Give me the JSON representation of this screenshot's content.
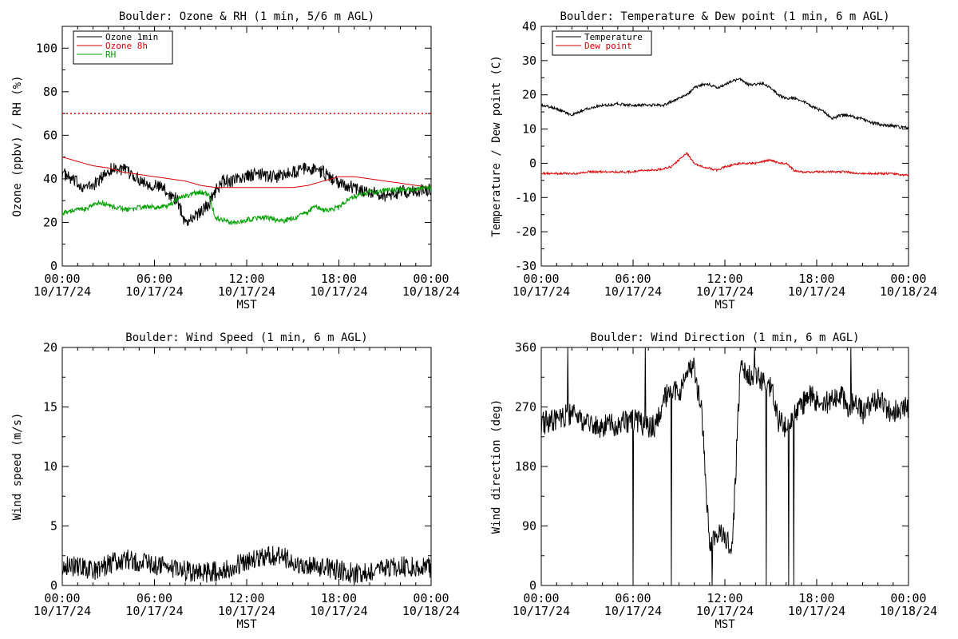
{
  "chart_data": [
    {
      "type": "line",
      "title": "Boulder: Ozone & RH (1 min, 5/6 m AGL)",
      "xlabel": "MST",
      "ylabel": "Ozone (ppbv) / RH (%)",
      "xlim": [
        0,
        24
      ],
      "ylim": [
        0,
        110
      ],
      "x_ticks": [
        {
          "time": "00:00",
          "date": "10/17/24"
        },
        {
          "time": "06:00",
          "date": "10/17/24"
        },
        {
          "time": "12:00",
          "date": "10/17/24"
        },
        {
          "time": "18:00",
          "date": "10/17/24"
        },
        {
          "time": "00:00",
          "date": "10/18/24"
        }
      ],
      "y_ticks": [
        0,
        20,
        40,
        60,
        80,
        100
      ],
      "legend_position": "top-left",
      "reference_line": {
        "value": 70,
        "color": "#e00000",
        "style": "dotted"
      },
      "series": [
        {
          "name": "Ozone 1min",
          "color": "#000000",
          "x": [
            0,
            0.5,
            1,
            1.5,
            2,
            2.5,
            3,
            3.5,
            4,
            4.5,
            5,
            5.5,
            6,
            6.5,
            7,
            7.5,
            8,
            8.5,
            9,
            9.5,
            10,
            10.5,
            11,
            11.5,
            12,
            12.5,
            13,
            13.5,
            14,
            14.5,
            15,
            15.5,
            16,
            16.5,
            17,
            17.5,
            18,
            18.5,
            19,
            19.5,
            20,
            20.5,
            21,
            21.5,
            22,
            22.5,
            23,
            23.5,
            24
          ],
          "values": [
            43,
            40,
            38,
            36,
            37,
            40,
            44,
            45,
            44,
            42,
            40,
            38,
            37,
            36,
            33,
            30,
            20,
            22,
            25,
            28,
            35,
            39,
            39,
            40,
            41,
            42,
            42,
            41,
            41,
            42,
            43,
            44,
            45,
            44,
            43,
            40,
            38,
            37,
            36,
            35,
            34,
            33,
            32,
            33,
            34,
            34,
            34,
            35,
            35
          ],
          "noise": 3
        },
        {
          "name": "Ozone 8h",
          "color": "#e00000",
          "x": [
            0,
            1,
            2,
            3,
            4,
            5,
            6,
            7,
            8,
            9,
            10,
            11,
            12,
            13,
            14,
            15,
            16,
            17,
            18,
            19,
            20,
            21,
            22,
            23,
            24
          ],
          "values": [
            50,
            48,
            46,
            45,
            43,
            42,
            41,
            40,
            39,
            37,
            36,
            36,
            36,
            36,
            36,
            36,
            37,
            39,
            41,
            41,
            40,
            39,
            38,
            37,
            36
          ],
          "noise": 0
        },
        {
          "name": "RH",
          "color": "#00a000",
          "x": [
            0,
            0.5,
            1,
            1.5,
            2,
            2.5,
            3,
            3.5,
            4,
            4.5,
            5,
            5.5,
            6,
            6.5,
            7,
            7.5,
            8,
            8.5,
            9,
            9.5,
            10,
            10.5,
            11,
            11.5,
            12,
            12.5,
            13,
            13.5,
            14,
            14.5,
            15,
            15.5,
            16,
            16.5,
            17,
            17.5,
            18,
            18.5,
            19,
            19.5,
            20,
            20.5,
            21,
            21.5,
            22,
            22.5,
            23,
            23.5,
            24
          ],
          "values": [
            24,
            25,
            26,
            26,
            28,
            29,
            28,
            27,
            26,
            26,
            27,
            27,
            27,
            27,
            28,
            31,
            32,
            33,
            34,
            33,
            22,
            21,
            20,
            20,
            21,
            22,
            22,
            22,
            21,
            21,
            22,
            23,
            25,
            27,
            26,
            26,
            27,
            30,
            32,
            33,
            34,
            34,
            35,
            35,
            35,
            35,
            35,
            36,
            36
          ],
          "noise": 1.2
        }
      ]
    },
    {
      "type": "line",
      "title": "Boulder: Temperature & Dew point (1 min, 6 m AGL)",
      "xlabel": "MST",
      "ylabel": "Temperature / Dew point (C)",
      "xlim": [
        0,
        24
      ],
      "ylim": [
        -30,
        40
      ],
      "x_ticks": [
        {
          "time": "00:00",
          "date": "10/17/24"
        },
        {
          "time": "06:00",
          "date": "10/17/24"
        },
        {
          "time": "12:00",
          "date": "10/17/24"
        },
        {
          "time": "18:00",
          "date": "10/17/24"
        },
        {
          "time": "00:00",
          "date": "10/18/24"
        }
      ],
      "y_ticks": [
        -30,
        -20,
        -10,
        0,
        10,
        20,
        30,
        40
      ],
      "legend_position": "top-left",
      "series": [
        {
          "name": "Temperature",
          "color": "#000000",
          "x": [
            0,
            0.5,
            1,
            1.5,
            2,
            2.5,
            3,
            3.5,
            4,
            4.5,
            5,
            5.5,
            6,
            6.5,
            7,
            7.5,
            8,
            8.5,
            9,
            9.5,
            10,
            10.5,
            11,
            11.5,
            12,
            12.5,
            13,
            13.5,
            14,
            14.5,
            15,
            15.5,
            16,
            16.5,
            17,
            17.5,
            18,
            18.5,
            19,
            19.5,
            20,
            20.5,
            21,
            21.5,
            22,
            22.5,
            23,
            23.5,
            24
          ],
          "values": [
            17,
            16.5,
            16,
            15,
            14,
            15,
            16,
            16.5,
            17,
            17,
            17.5,
            17,
            17,
            17,
            17,
            17,
            17,
            18,
            19,
            20,
            22,
            23,
            23,
            22,
            23,
            24,
            24.5,
            23,
            23,
            23.5,
            22,
            20,
            19,
            19,
            18.5,
            17,
            16,
            15,
            13,
            14,
            14,
            13.5,
            13,
            12,
            11.5,
            11,
            11,
            10.5,
            10.5
          ],
          "noise": 0.4
        },
        {
          "name": "Dew point",
          "color": "#e00000",
          "x": [
            0,
            0.5,
            1,
            1.5,
            2,
            2.5,
            3,
            3.5,
            4,
            4.5,
            5,
            5.5,
            6,
            6.5,
            7,
            7.5,
            8,
            8.5,
            9,
            9.5,
            10,
            10.5,
            11,
            11.5,
            12,
            12.5,
            13,
            13.5,
            14,
            14.5,
            15,
            15.5,
            16,
            16.5,
            17,
            17.5,
            18,
            18.5,
            19,
            19.5,
            20,
            20.5,
            21,
            21.5,
            22,
            22.5,
            23,
            23.5,
            24
          ],
          "values": [
            -3,
            -3,
            -3,
            -3,
            -3,
            -3,
            -2.5,
            -2.5,
            -2.5,
            -2.5,
            -2.5,
            -2.5,
            -2.5,
            -2,
            -2,
            -2,
            -1.5,
            -1,
            1,
            3,
            0,
            -1,
            -1.5,
            -2,
            -1,
            -0.5,
            0,
            0,
            0,
            0.5,
            1,
            0,
            0,
            -2,
            -2.5,
            -2.5,
            -2.5,
            -2.5,
            -2.5,
            -2.5,
            -2.5,
            -3,
            -3,
            -3,
            -3,
            -3,
            -3,
            -3.5,
            -3.5
          ],
          "noise": 0.3
        }
      ]
    },
    {
      "type": "line",
      "title": "Boulder: Wind Speed (1 min, 6 m AGL)",
      "xlabel": "MST",
      "ylabel": "Wind speed (m/s)",
      "xlim": [
        0,
        24
      ],
      "ylim": [
        0,
        20
      ],
      "x_ticks": [
        {
          "time": "00:00",
          "date": "10/17/24"
        },
        {
          "time": "06:00",
          "date": "10/17/24"
        },
        {
          "time": "12:00",
          "date": "10/17/24"
        },
        {
          "time": "18:00",
          "date": "10/17/24"
        },
        {
          "time": "00:00",
          "date": "10/18/24"
        }
      ],
      "y_ticks": [
        0,
        5,
        10,
        15,
        20
      ],
      "series": [
        {
          "color": "#000000",
          "x": [
            0,
            1,
            2,
            3,
            4,
            5,
            6,
            7,
            8,
            9,
            10,
            11,
            12,
            13,
            14,
            15,
            16,
            17,
            18,
            19,
            20,
            21,
            22,
            23,
            24
          ],
          "values": [
            1.8,
            1.6,
            1.2,
            1.8,
            2.2,
            2.0,
            1.8,
            1.5,
            1.2,
            1.0,
            1.2,
            1.6,
            2.0,
            2.4,
            2.6,
            2.0,
            1.6,
            1.6,
            1.3,
            1.0,
            1.2,
            1.5,
            1.6,
            1.6,
            1.5
          ],
          "noise": 0.9
        }
      ]
    },
    {
      "type": "line",
      "title": "Boulder: Wind Direction (1 min, 6 m AGL)",
      "xlabel": "MST",
      "ylabel": "Wind direction (deg)",
      "xlim": [
        0,
        24
      ],
      "ylim": [
        0,
        360
      ],
      "x_ticks": [
        {
          "time": "00:00",
          "date": "10/17/24"
        },
        {
          "time": "06:00",
          "date": "10/17/24"
        },
        {
          "time": "12:00",
          "date": "10/17/24"
        },
        {
          "time": "18:00",
          "date": "10/17/24"
        },
        {
          "time": "00:00",
          "date": "10/18/24"
        }
      ],
      "y_ticks": [
        0,
        90,
        180,
        270,
        360
      ],
      "series": [
        {
          "color": "#000000",
          "x": [
            0,
            1,
            2,
            3,
            4,
            5,
            6,
            7,
            7.5,
            8,
            8.5,
            9,
            9.5,
            10,
            10.5,
            11,
            11.5,
            12,
            12.5,
            13,
            13.5,
            14,
            14.5,
            15,
            15.5,
            16,
            16.5,
            17,
            17.5,
            18,
            18.5,
            19,
            19.5,
            20,
            20.5,
            21,
            21.5,
            22,
            22.5,
            23,
            23.5,
            24
          ],
          "values": [
            245,
            250,
            260,
            245,
            240,
            245,
            250,
            240,
            240,
            280,
            300,
            290,
            320,
            330,
            260,
            60,
            80,
            70,
            60,
            330,
            320,
            320,
            310,
            300,
            250,
            240,
            260,
            270,
            290,
            280,
            275,
            280,
            290,
            270,
            280,
            260,
            270,
            280,
            270,
            260,
            270,
            270
          ],
          "noise": 18
        }
      ]
    }
  ]
}
